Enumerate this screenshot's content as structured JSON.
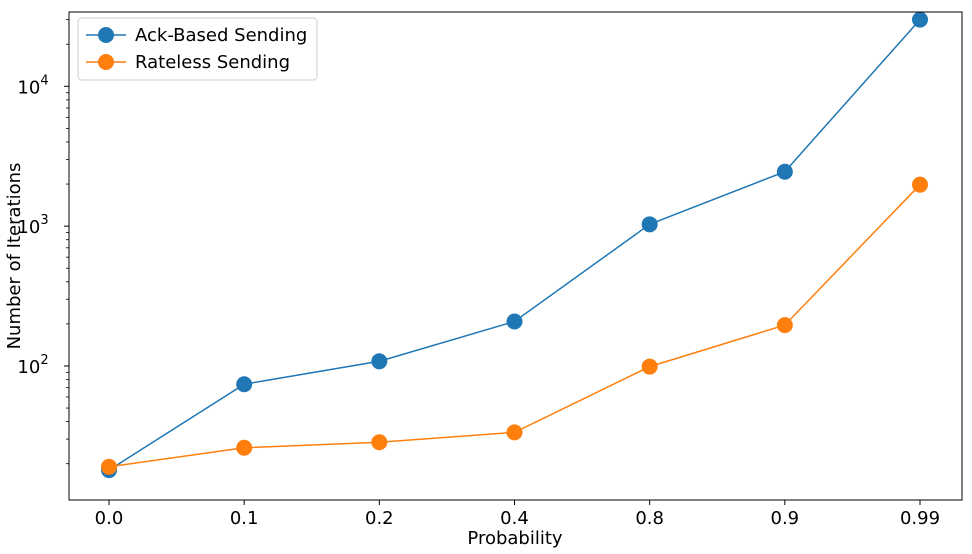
{
  "chart_data": {
    "type": "line",
    "title": "",
    "xlabel": "Probability",
    "ylabel": "Number of Iterations",
    "categories": [
      "0.0",
      "0.1",
      "0.2",
      "0.4",
      "0.8",
      "0.9",
      "0.99"
    ],
    "yscale": "log",
    "ylim": [
      11,
      34000
    ],
    "y_ticks": [
      {
        "value": 100,
        "base": "10",
        "exp": "2"
      },
      {
        "value": 1000,
        "base": "10",
        "exp": "3"
      },
      {
        "value": 10000,
        "base": "10",
        "exp": "4"
      }
    ],
    "grid": false,
    "legend_position": "top-left",
    "series": [
      {
        "name": "Ack-Based Sending",
        "color": "#1f77b4",
        "marker": "circle",
        "values": [
          18,
          74,
          108,
          208,
          1030,
          2450,
          30000
        ]
      },
      {
        "name": "Rateless Sending",
        "color": "#ff7f0e",
        "marker": "circle",
        "values": [
          19,
          26,
          28.5,
          33.5,
          99,
          196,
          1980
        ]
      }
    ]
  }
}
